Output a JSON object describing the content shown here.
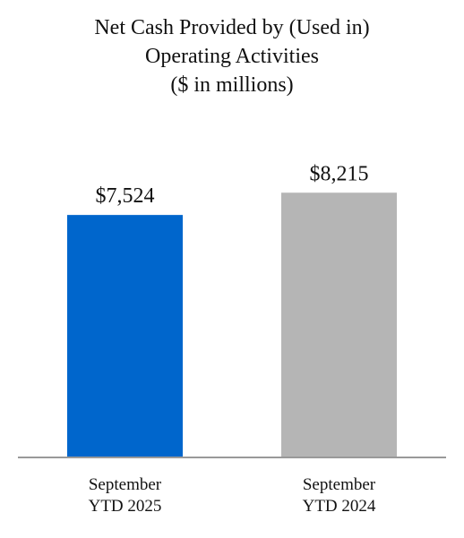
{
  "chart_data": {
    "type": "bar",
    "title": [
      "Net Cash Provided by (Used in)",
      "Operating Activities",
      "($ in millions)"
    ],
    "categories": [
      [
        "September",
        "YTD 2025"
      ],
      [
        "September",
        "YTD 2024"
      ]
    ],
    "values": [
      7524,
      8215
    ],
    "value_labels": [
      "$7,524",
      "$8,215"
    ],
    "colors": [
      "#0066cc",
      "#b5b5b5"
    ],
    "axis_color": "#999999",
    "ylim": [
      0,
      11000
    ],
    "grid": false,
    "legend": "none"
  }
}
